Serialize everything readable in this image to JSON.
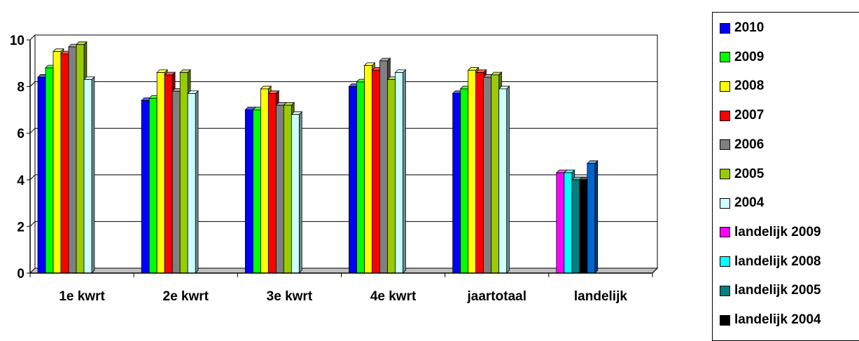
{
  "chart_data": {
    "type": "bar",
    "title": "",
    "xlabel": "",
    "ylabel": "",
    "ylim": [
      0,
      10
    ],
    "yticks": [
      "0",
      "2",
      "4",
      "6",
      "8",
      "10"
    ],
    "categories": [
      "1e kwrt",
      "2e kwrt",
      "3e kwrt",
      "4e kwrt",
      "jaartotaal",
      "landelijk"
    ],
    "grid": true,
    "legend_position": "right",
    "series": [
      {
        "name": "2010",
        "color": "#0000ff",
        "values": [
          8.4,
          7.4,
          7.0,
          8.0,
          7.7,
          null
        ]
      },
      {
        "name": "2009",
        "color": "#00ff00",
        "values": [
          8.8,
          7.5,
          7.0,
          8.2,
          7.9,
          null
        ]
      },
      {
        "name": "2008",
        "color": "#ffff00",
        "values": [
          9.5,
          8.6,
          7.9,
          8.9,
          8.7,
          null
        ]
      },
      {
        "name": "2007",
        "color": "#ff0000",
        "values": [
          9.4,
          8.5,
          7.7,
          8.7,
          8.6,
          null
        ]
      },
      {
        "name": "2006",
        "color": "#808080",
        "values": [
          9.7,
          7.8,
          7.2,
          9.1,
          8.4,
          null
        ]
      },
      {
        "name": "2005",
        "color": "#99cc00",
        "values": [
          9.8,
          8.6,
          7.2,
          8.3,
          8.5,
          null
        ]
      },
      {
        "name": "2004",
        "color": "#ccffff",
        "values": [
          8.3,
          7.7,
          6.8,
          8.6,
          7.9,
          null
        ]
      },
      {
        "name": "landelijk 2009",
        "color": "#ff00ff",
        "values": [
          null,
          null,
          null,
          null,
          null,
          4.3
        ]
      },
      {
        "name": "landelijk 2008",
        "color": "#00ffff",
        "values": [
          null,
          null,
          null,
          null,
          null,
          4.3
        ]
      },
      {
        "name": "landelijk 2005",
        "color": "#008080",
        "values": [
          null,
          null,
          null,
          null,
          null,
          4.0
        ]
      },
      {
        "name": "landelijk 2004",
        "color": "#000000",
        "values": [
          null,
          null,
          null,
          null,
          null,
          4.0
        ]
      },
      {
        "name": "",
        "color": "#0066cc",
        "values": [
          null,
          null,
          null,
          null,
          null,
          4.7
        ]
      }
    ]
  }
}
